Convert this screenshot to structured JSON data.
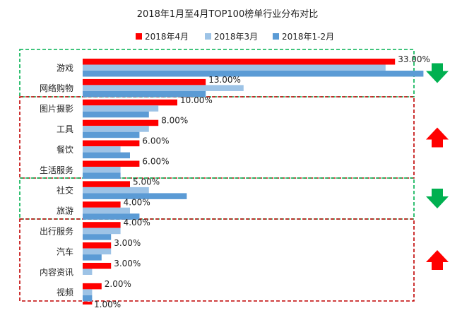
{
  "chart_data": {
    "type": "bar",
    "orientation": "horizontal",
    "title": "2018年1月至4月TOP100榜单行业分布对比",
    "xlabel": "",
    "ylabel": "",
    "xlim": [
      0,
      38
    ],
    "grid": false,
    "legend_position": "top",
    "categories": [
      "游戏",
      "网络购物",
      "图片摄影",
      "工具",
      "餐饮",
      "生活服务",
      "社交",
      "旅游",
      "出行服务",
      "汽车",
      "内容资讯",
      "视频"
    ],
    "series": [
      {
        "name": "2018年4月",
        "color": "#ff0000",
        "values": [
          33,
          13,
          10,
          8,
          6,
          6,
          5,
          4,
          4,
          3,
          3,
          2
        ]
      },
      {
        "name": "2018年3月",
        "color": "#9dc3e6",
        "values": [
          32,
          17,
          8,
          7,
          4,
          4,
          7,
          5,
          4,
          3,
          1,
          1
        ]
      },
      {
        "name": "2018年1-2月",
        "color": "#5b9bd5",
        "values": [
          36,
          13,
          7,
          6,
          5,
          4,
          11,
          6,
          3,
          2,
          0,
          1
        ]
      }
    ],
    "data_labels": [
      "33.00%",
      "13.00%",
      "10.00%",
      "8.00%",
      "6.00%",
      "6.00%",
      "5.00%",
      "4.00%",
      "4.00%",
      "3.00%",
      "3.00%",
      "2.00%"
    ],
    "cut_off_label": "1.00%",
    "groups": [
      {
        "name": "group-green-1",
        "box_color": "#00b050",
        "arrow": "down",
        "arrow_color": "#00b050",
        "categories": [
          "游戏",
          "网络购物"
        ]
      },
      {
        "name": "group-red-1",
        "box_color": "#c00000",
        "arrow": "up",
        "arrow_color": "#ff0000",
        "categories": [
          "图片摄影",
          "工具",
          "餐饮",
          "生活服务"
        ]
      },
      {
        "name": "group-green-2",
        "box_color": "#00b050",
        "arrow": "down",
        "arrow_color": "#00b050",
        "categories": [
          "社交",
          "旅游"
        ]
      },
      {
        "name": "group-red-2",
        "box_color": "#c00000",
        "arrow": "up",
        "arrow_color": "#ff0000",
        "categories": [
          "出行服务",
          "汽车",
          "内容资讯",
          "视频"
        ]
      }
    ]
  }
}
